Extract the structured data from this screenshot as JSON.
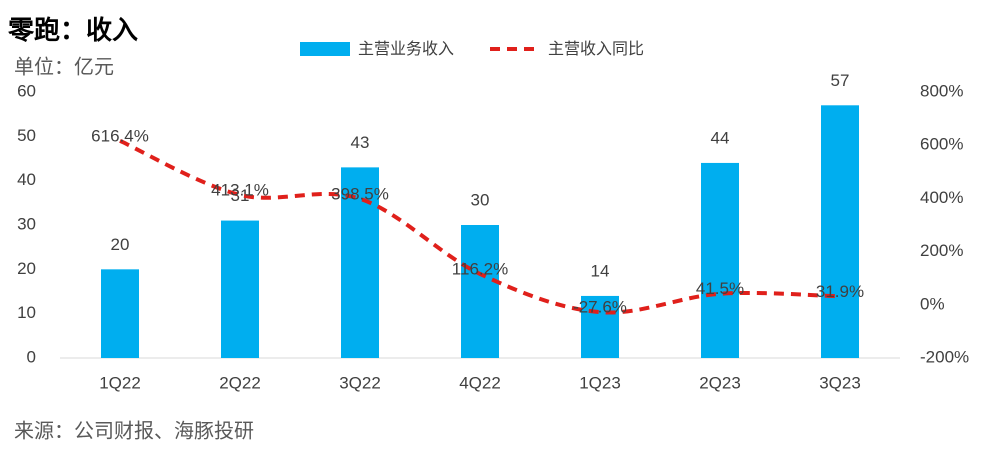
{
  "chart_data": {
    "type": "bar_line",
    "title": "零跑：收入",
    "subtitle": "单位：亿元",
    "source": "来源：公司财报、海豚投研",
    "categories": [
      "1Q22",
      "2Q22",
      "3Q22",
      "4Q22",
      "1Q23",
      "2Q23",
      "3Q23"
    ],
    "series": [
      {
        "name": "主营业务收入",
        "type": "bar",
        "color": "#00aeef",
        "values": [
          20,
          31,
          43,
          30,
          14,
          44,
          57
        ]
      },
      {
        "name": "主营收入同比",
        "type": "line",
        "axis": "y2",
        "color": "#e0201b",
        "values": [
          616.4,
          413.1,
          398.5,
          116.2,
          -27.6,
          41.5,
          31.9
        ],
        "value_labels": [
          "616.4%",
          "413.1%",
          "398.5%",
          "116.2%",
          "-27.6%",
          "41.5%",
          "31.9%"
        ]
      }
    ],
    "ylim": [
      0,
      60
    ],
    "yticks": [
      0,
      10,
      20,
      30,
      40,
      50,
      60
    ],
    "y2lim": [
      -200,
      800
    ],
    "y2ticks": [
      {
        "value": -200,
        "label": "-200%"
      },
      {
        "value": 0,
        "label": "0%"
      },
      {
        "value": 200,
        "label": "200%"
      },
      {
        "value": 400,
        "label": "400%"
      },
      {
        "value": 600,
        "label": "600%"
      },
      {
        "value": 800,
        "label": "800%"
      }
    ],
    "legend": "top"
  }
}
